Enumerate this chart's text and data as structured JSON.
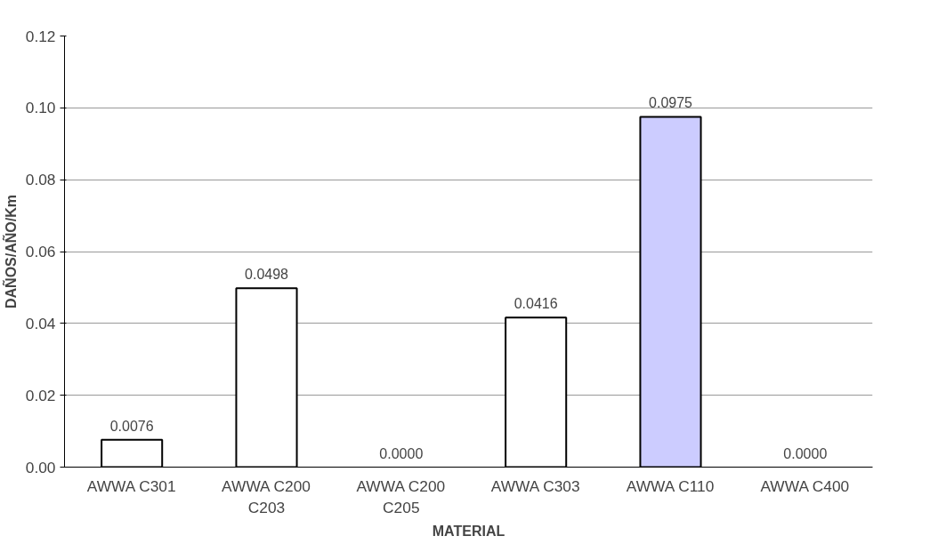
{
  "chart_data": {
    "type": "bar",
    "xlabel": "MATERIAL",
    "ylabel": "DAÑOS/AÑO/Km",
    "categories": [
      "AWWA C301",
      "AWWA C200\nC203",
      "AWWA C200\nC205",
      "AWWA C303",
      "AWWA C110",
      "AWWA C400"
    ],
    "values": [
      0.0076,
      0.0498,
      0.0,
      0.0416,
      0.0975,
      0.0
    ],
    "value_labels": [
      "0.0076",
      "0.0498",
      "0.0000",
      "0.0416",
      "0.0975",
      "0.0000"
    ],
    "colors": [
      "#ffffff",
      "#ffffff",
      "#ffffff",
      "#ffffff",
      "#ccccff",
      "#ffffff"
    ],
    "ylim": [
      0,
      0.12
    ],
    "yticks": [
      {
        "value": 0,
        "label": "0.00"
      },
      {
        "value": 0.02,
        "label": "0.02"
      },
      {
        "value": 0.04,
        "label": "0.04"
      },
      {
        "value": 0.06,
        "label": "0.06"
      },
      {
        "value": 0.08,
        "label": "0.08"
      },
      {
        "value": 0.1,
        "label": "0.10"
      },
      {
        "value": 0.12,
        "label": "0.12"
      }
    ],
    "grid": "y"
  }
}
